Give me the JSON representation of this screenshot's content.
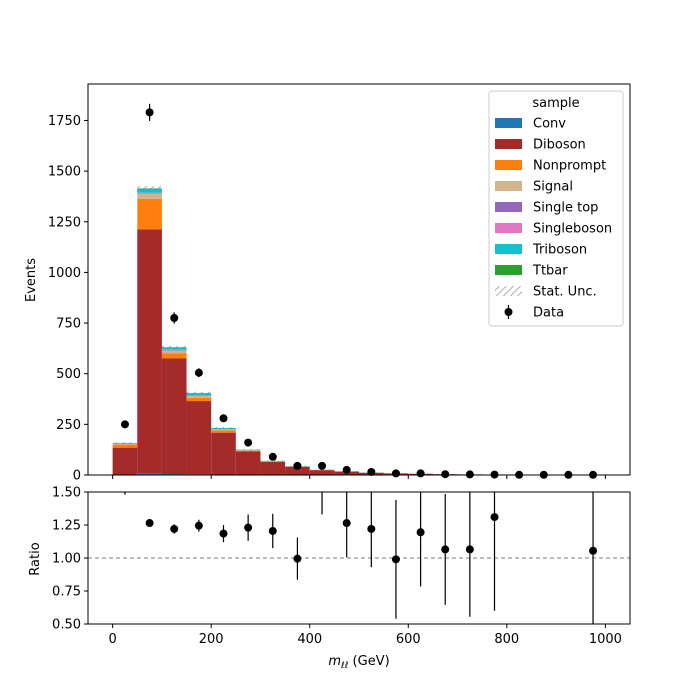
{
  "chart_data": [
    {
      "type": "bar",
      "stacked": true,
      "histogram": true,
      "bin_edges": [
        0,
        50,
        100,
        150,
        200,
        250,
        300,
        350,
        400,
        450,
        500,
        550,
        600,
        650,
        700,
        750,
        800,
        850,
        900,
        950,
        1000
      ],
      "xlim": [
        -50,
        1050
      ],
      "ylim": [
        0,
        1930
      ],
      "ylabel": "Events",
      "y_ticks": [
        0,
        250,
        500,
        750,
        1000,
        1250,
        1500,
        1750
      ],
      "legend": {
        "title": "sample",
        "position": "top-right",
        "stat_unc_label": "Stat. Unc.",
        "data_label": "Data"
      },
      "series": [
        {
          "name": "Conv",
          "color": "#1f77b4",
          "values": [
            2,
            8,
            5,
            3,
            2,
            1,
            1,
            0,
            0,
            0,
            0,
            0,
            0,
            0,
            0,
            0,
            0,
            0,
            0,
            0
          ]
        },
        {
          "name": "Diboson",
          "color": "#a52a2a",
          "values": [
            133,
            1205,
            570,
            362,
            207,
            115,
            64,
            40,
            24,
            17,
            11,
            8,
            6,
            4,
            3,
            2,
            2,
            1,
            1,
            1
          ]
        },
        {
          "name": "Nonprompt",
          "color": "#ff7f0e",
          "values": [
            15,
            150,
            25,
            15,
            12,
            4,
            2,
            1,
            1,
            0,
            0,
            0,
            0,
            0,
            0,
            0,
            0,
            0,
            0,
            0
          ]
        },
        {
          "name": "Signal",
          "color": "#d2b48c",
          "values": [
            4,
            25,
            15,
            10,
            5,
            2,
            1,
            1,
            0,
            0,
            0,
            0,
            0,
            0,
            0,
            0,
            0,
            0,
            0,
            0
          ]
        },
        {
          "name": "Single top",
          "color": "#9467bd",
          "values": [
            0,
            3,
            2,
            1,
            1,
            0,
            0,
            0,
            0,
            0,
            0,
            0,
            0,
            0,
            0,
            0,
            0,
            0,
            0,
            0
          ]
        },
        {
          "name": "Singleboson",
          "color": "#e377c2",
          "values": [
            0,
            2,
            1,
            1,
            0,
            0,
            0,
            0,
            0,
            0,
            0,
            0,
            0,
            0,
            0,
            0,
            0,
            0,
            0,
            0
          ]
        },
        {
          "name": "Triboson",
          "color": "#17becf",
          "values": [
            4,
            20,
            12,
            12,
            5,
            3,
            2,
            2,
            1,
            1,
            1,
            0,
            0,
            0,
            0,
            0,
            0,
            0,
            0,
            0
          ]
        },
        {
          "name": "Ttbar",
          "color": "#2ca02c",
          "values": [
            0,
            2,
            1,
            1,
            0,
            0,
            0,
            0,
            0,
            0,
            0,
            0,
            0,
            0,
            0,
            0,
            0,
            0,
            0,
            0
          ]
        }
      ],
      "data": {
        "x": [
          25,
          75,
          125,
          175,
          225,
          275,
          325,
          375,
          425,
          475,
          525,
          575,
          625,
          675,
          725,
          775,
          825,
          875,
          925,
          975
        ],
        "y": [
          250,
          1790,
          775,
          505,
          280,
          160,
          90,
          45,
          45,
          25,
          15,
          8,
          8,
          4,
          3,
          2,
          1,
          1,
          1,
          1
        ],
        "yerr": [
          16,
          42,
          28,
          22,
          17,
          13,
          9,
          7,
          7,
          5,
          4,
          3,
          3,
          2,
          2,
          1.5,
          1,
          1,
          1,
          1
        ]
      }
    },
    {
      "type": "scatter",
      "xlim": [
        -50,
        1050
      ],
      "ylim": [
        0.5,
        1.5
      ],
      "xlabel_main": "m",
      "xlabel_sub": "ℓℓ",
      "xlabel_unit": " (GeV)",
      "ylabel": "Ratio",
      "x_ticks": [
        0,
        200,
        400,
        600,
        800,
        1000
      ],
      "y_ticks": [
        "0.50",
        "0.75",
        "1.00",
        "1.25",
        "1.50"
      ],
      "reference_line": 1.0,
      "x": [
        75,
        125,
        175,
        225,
        275,
        325,
        375,
        475,
        525,
        575,
        625,
        675,
        725,
        775,
        975
      ],
      "y": [
        1.265,
        1.22,
        1.245,
        1.185,
        1.23,
        1.205,
        0.995,
        1.265,
        1.22,
        0.99,
        1.195,
        1.065,
        1.065,
        1.31,
        1.055
      ],
      "yerr": [
        0.03,
        0.035,
        0.045,
        0.065,
        0.1,
        0.13,
        0.16,
        0.26,
        0.29,
        0.45,
        0.41,
        0.42,
        0.51,
        0.71,
        0.6
      ],
      "extra_error_bars": [
        {
          "x": 25,
          "lo": 1.48,
          "hi": 1.5
        },
        {
          "x": 425,
          "lo": 1.33,
          "hi": 1.5
        }
      ]
    }
  ]
}
